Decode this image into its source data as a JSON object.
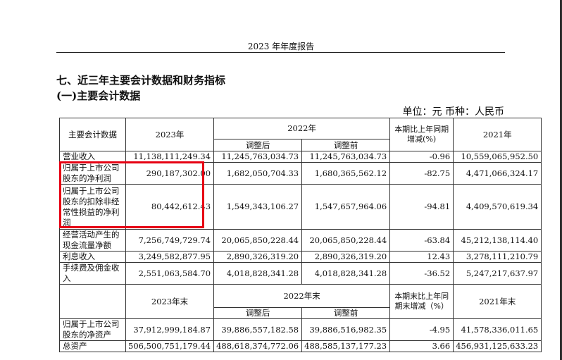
{
  "page": {
    "header_title": "2023 年年度报告",
    "section_title": "七、近三年主要会计数据和财务指标",
    "sub_title": "(一)主要会计数据",
    "unit_line": "单位：元   币种：人民币"
  },
  "table_top": {
    "headers": {
      "item": "主要会计数据",
      "y2023": "2023年",
      "y2022": "2022年",
      "adjusted": "调整后",
      "before": "调整前",
      "change": "本期比上年同期增减(%)",
      "y2021": "2021年"
    },
    "rows": [
      {
        "label": "营业收入",
        "y2023": "11,138,111,249.34",
        "adjusted": "11,245,763,034.73",
        "before": "11,245,763,034.73",
        "change": "-0.96",
        "y2021": "10,559,065,952.50"
      },
      {
        "label": "归属于上市公司股东的净利润",
        "y2023": "290,187,302.00",
        "adjusted": "1,682,050,704.33",
        "before": "1,680,365,562.12",
        "change": "-82.75",
        "y2021": "4,471,066,324.17"
      },
      {
        "label": "归属于上市公司股东的扣除非经常性损益的净利润",
        "y2023": "80,442,612.43",
        "adjusted": "1,549,343,106.27",
        "before": "1,547,657,964.06",
        "change": "-94.81",
        "y2021": "4,409,570,619.34"
      },
      {
        "label": "经营活动产生的现金流量净额",
        "y2023": "7,256,749,729.74",
        "adjusted": "20,065,850,228.44",
        "before": "20,065,850,228.44",
        "change": "-63.84",
        "y2021": "45,212,138,114.40"
      },
      {
        "label": "利息收入",
        "y2023": "3,249,582,877.95",
        "adjusted": "2,890,326,319.20",
        "before": "2,890,326,319.20",
        "change": "12.43",
        "y2021": "3,278,111,210.79"
      },
      {
        "label": "手续费及佣金收入",
        "y2023": "2,551,063,584.70",
        "adjusted": "4,018,828,341.28",
        "before": "4,018,828,341.28",
        "change": "-36.52",
        "y2021": "5,247,217,637.97"
      }
    ]
  },
  "table_bottom": {
    "headers": {
      "y2023": "2023年末",
      "y2022": "2022年末",
      "adjusted": "调整后",
      "before": "调整前",
      "change": "本期末比上年同期末增减（%）",
      "y2021": "2021年末"
    },
    "rows": [
      {
        "label": "归属于上市公司股东的净资产",
        "y2023": "37,912,999,184.87",
        "adjusted": "39,886,557,182.58",
        "before": "39,886,516,982.35",
        "change": "-4.95",
        "y2021": "41,578,336,011.65"
      },
      {
        "label": "总资产",
        "y2023": "506,500,751,179.44",
        "adjusted": "488,618,374,772.06",
        "before": "488,585,137,177.23",
        "change": "3.66",
        "y2021": "456,931,125,633.23"
      }
    ]
  },
  "colors": {
    "highlight": "#e60012",
    "text": "#111111",
    "border": "#333333"
  }
}
